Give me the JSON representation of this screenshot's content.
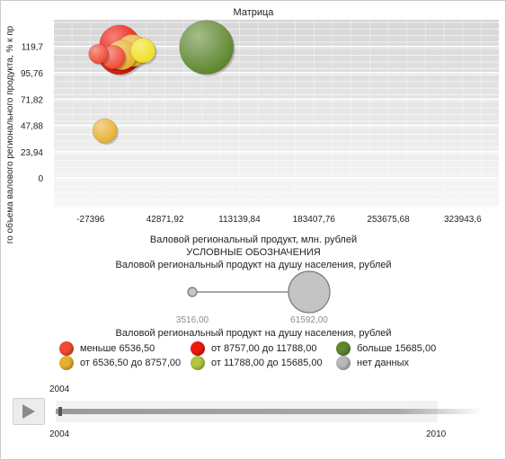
{
  "chart_data": {
    "type": "scatter",
    "title": "Матрица",
    "xlabel": "Валовой региональный продукт, млн. рублей",
    "ylabel": "го объема валового регионального продукта, % к пр",
    "xlim": [
      -62000,
      358000
    ],
    "ylim": [
      -26,
      144
    ],
    "x_ticks": [
      -27396,
      42871.92,
      113139.84,
      183407.76,
      253675.68,
      323943.6
    ],
    "x_tick_labels": [
      "-27396",
      "42871,92",
      "113139,84",
      "183407,76",
      "253675,68",
      "323943,6"
    ],
    "y_ticks": [
      0,
      23.94,
      47.88,
      71.82,
      95.76,
      119.7
    ],
    "y_tick_labels": [
      "0",
      "23,94",
      "47,88",
      "71,82",
      "95,76",
      "119,7"
    ],
    "grid": true,
    "points": [
      {
        "x": 82000,
        "y": 119,
        "size": 61592,
        "color": "#5e8730"
      },
      {
        "x": 22000,
        "y": 116,
        "size": 13000,
        "color": "#f0e020"
      },
      {
        "x": 12000,
        "y": 116,
        "size": 22000,
        "color": "#e8b030"
      },
      {
        "x": 0,
        "y": 121,
        "size": 34000,
        "color": "#ec1a0e"
      },
      {
        "x": 0,
        "y": 114,
        "size": 40000,
        "color": "#d81508"
      },
      {
        "x": 2000,
        "y": 112,
        "size": 19000,
        "color": "#e8b030"
      },
      {
        "x": -6000,
        "y": 110,
        "size": 12000,
        "color": "#f04a32"
      },
      {
        "x": -20000,
        "y": 113,
        "size": 8000,
        "color": "#f04a32"
      },
      {
        "x": -14000,
        "y": 43,
        "size": 12500,
        "color": "#e8b030"
      }
    ]
  },
  "legend": {
    "title": "УСЛОВНЫЕ ОБОЗНАЧЕНИЯ",
    "size_title": "Валовой региональный продукт на душу населения, рублей",
    "size_min": "3516,00",
    "size_max": "61592,00",
    "color_title": "Валовой региональный продукт на душу населения, рублей",
    "items": [
      {
        "label": "меньше 6536,50",
        "color": "#f04a32"
      },
      {
        "label": "от 8757,00 до 11788,00",
        "color": "#ec1a0e"
      },
      {
        "label": "больше 15685,00",
        "color": "#5e8730"
      },
      {
        "label": "от 6536,50 до 8757,00",
        "color": "#e8b030"
      },
      {
        "label": "от 11788,00 до 15685,00",
        "color": "#b2c640"
      },
      {
        "label": "нет данных",
        "color": "#b8b8b8"
      }
    ]
  },
  "timeline": {
    "current": "2004",
    "start": "2004",
    "end": "2010"
  }
}
